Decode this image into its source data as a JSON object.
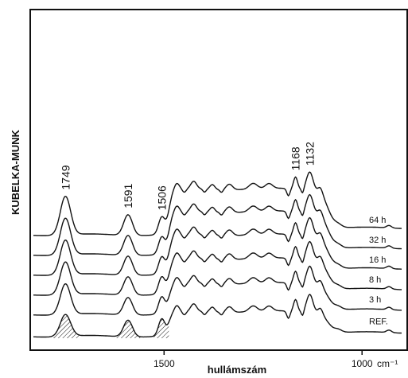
{
  "chart_data": {
    "type": "line",
    "ylabel": "KUBELKA-MUNK",
    "xlabel": "hullámszám",
    "x_unit": "cm⁻¹",
    "x_reversed": true,
    "xlim": [
      1830,
      900
    ],
    "x_ticks": [
      {
        "value": 1500,
        "label": "1500"
      },
      {
        "value": 1000,
        "label": "1000"
      }
    ],
    "peak_annotations": [
      {
        "x": 1749,
        "label": "1749"
      },
      {
        "x": 1591,
        "label": "1591"
      },
      {
        "x": 1506,
        "label": "1506"
      },
      {
        "x": 1168,
        "label": "1168"
      },
      {
        "x": 1132,
        "label": "1132"
      }
    ],
    "series": [
      {
        "name": "REF.",
        "baseline": 0.0,
        "bulk_level": 0.62
      },
      {
        "name": "3 h",
        "baseline": 0.55,
        "bulk_level": 0.78
      },
      {
        "name": "8 h",
        "baseline": 1.05,
        "bulk_level": 0.9
      },
      {
        "name": "16 h",
        "baseline": 1.55,
        "bulk_level": 1.0
      },
      {
        "name": "32 h",
        "baseline": 2.05,
        "bulk_level": 1.08
      },
      {
        "name": "64 h",
        "baseline": 2.55,
        "bulk_level": 1.15
      }
    ],
    "grid": false,
    "legend": "right, labels beside each curve"
  }
}
